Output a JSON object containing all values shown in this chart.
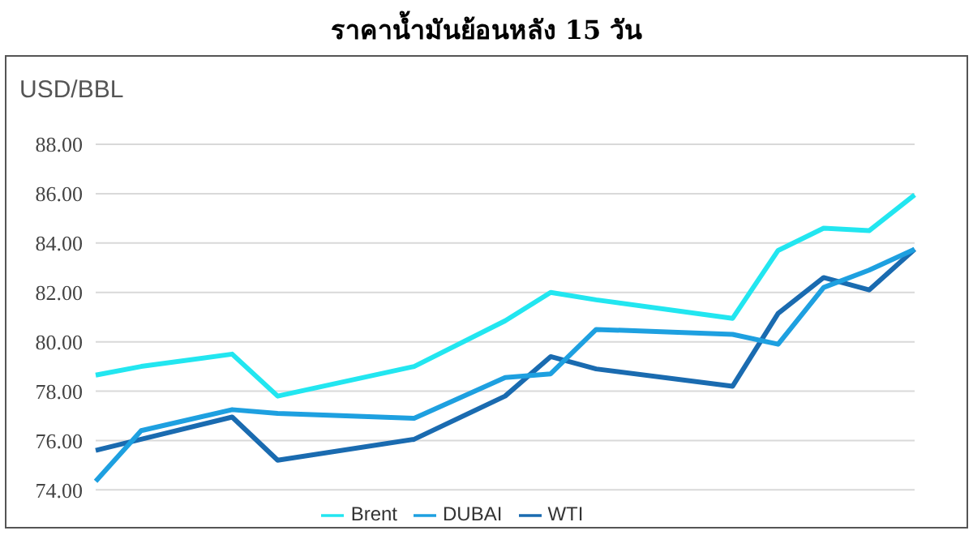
{
  "chart_data": {
    "type": "line",
    "title": "ราคาน้ำมันย้อนหลัง 15 วัน",
    "ylabel": "USD/BBL",
    "categories": [
      null,
      null,
      null,
      null,
      null,
      null,
      null,
      null,
      null,
      null,
      null,
      null,
      null,
      null,
      null,
      null,
      null,
      null,
      null
    ],
    "series": [
      {
        "name": "WTI",
        "color": "#1a6bb0",
        "values": [
          75.6,
          76.05,
          null,
          76.95,
          75.2,
          null,
          null,
          76.05,
          null,
          77.8,
          79.4,
          78.9,
          null,
          null,
          78.2,
          81.15,
          82.6,
          82.1,
          83.75
        ]
      },
      {
        "name": "DUBAI",
        "color": "#1ea0e0",
        "values": [
          74.35,
          76.4,
          null,
          77.25,
          77.1,
          null,
          null,
          76.9,
          null,
          78.55,
          78.7,
          80.5,
          null,
          null,
          80.3,
          79.9,
          82.2,
          82.9,
          83.75
        ]
      },
      {
        "name": "Brent",
        "color": "#22e6f0",
        "values": [
          78.65,
          79.0,
          null,
          79.5,
          77.8,
          null,
          null,
          79.0,
          null,
          80.85,
          82.0,
          81.7,
          null,
          null,
          80.95,
          83.7,
          84.6,
          84.5,
          85.95
        ]
      }
    ],
    "ylim": [
      74,
      88
    ],
    "yticks": [
      {
        "value": 74,
        "label": "74.00"
      },
      {
        "value": 76,
        "label": "76.00"
      },
      {
        "value": 78,
        "label": "78.00"
      },
      {
        "value": 80,
        "label": "80.00"
      },
      {
        "value": 82,
        "label": "82.00"
      },
      {
        "value": 84,
        "label": "84.00"
      },
      {
        "value": 86,
        "label": "86.00"
      },
      {
        "value": 88,
        "label": "88.00"
      }
    ],
    "grid": "y",
    "legend": "bottom",
    "tick_labels": "y",
    "marker": "none",
    "line_style": "solid"
  }
}
